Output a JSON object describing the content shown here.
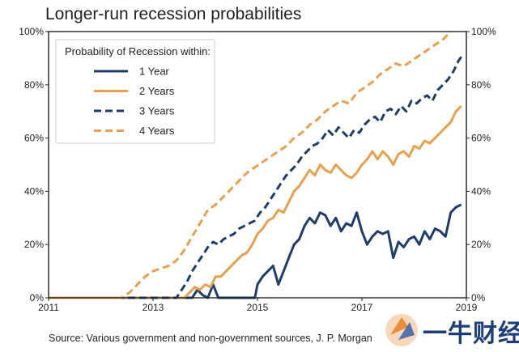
{
  "chart_data": {
    "type": "line",
    "title": "Longer-run recession probabilities",
    "source": "Source: Various government and non-government sources, J. P. Morgan",
    "legend": {
      "title": "Probability of Recession within:",
      "position": "top-left"
    },
    "xlim": [
      2011,
      2019
    ],
    "ylim": [
      0,
      100
    ],
    "x_ticks": [
      "2011",
      "2013",
      "2015",
      "2017",
      "2019"
    ],
    "y_ticks": [
      "0%",
      "20%",
      "40%",
      "60%",
      "80%",
      "100%"
    ],
    "y_ticks_right": [
      "0%",
      "20%",
      "40%",
      "60%",
      "80%",
      "100%"
    ],
    "colors": {
      "navy": "#1f3d6b",
      "orange": "#e8a04d"
    },
    "series": [
      {
        "name": "1 Year",
        "color": "#1f3d6b",
        "dash": false,
        "x": [
          2011,
          2013.75,
          2013.85,
          2013.95,
          2014.05,
          2014.15,
          2014.25,
          2014.95,
          2015.0,
          2015.1,
          2015.2,
          2015.3,
          2015.4,
          2015.5,
          2015.6,
          2015.7,
          2015.8,
          2015.9,
          2016.0,
          2016.1,
          2016.2,
          2016.3,
          2016.4,
          2016.5,
          2016.6,
          2016.7,
          2016.8,
          2016.9,
          2017.0,
          2017.1,
          2017.2,
          2017.3,
          2017.4,
          2017.5,
          2017.6,
          2017.7,
          2017.8,
          2017.9,
          2018.0,
          2018.1,
          2018.2,
          2018.3,
          2018.4,
          2018.5,
          2018.6,
          2018.7,
          2018.8,
          2018.9
        ],
        "y": [
          0,
          0,
          3,
          1,
          0,
          5,
          0,
          0,
          5,
          8,
          10,
          12,
          5,
          10,
          15,
          20,
          22,
          27,
          30,
          28,
          32,
          31,
          27,
          30,
          25,
          28,
          27,
          32,
          25,
          20,
          23,
          25,
          24,
          25,
          15,
          21,
          19,
          22,
          23,
          20,
          25,
          22,
          26,
          25,
          23,
          32,
          34,
          35
        ]
      },
      {
        "name": "2 Years",
        "color": "#e8a04d",
        "dash": false,
        "x": [
          2011,
          2013.6,
          2013.7,
          2013.8,
          2013.9,
          2014.0,
          2014.1,
          2014.2,
          2014.3,
          2014.4,
          2014.5,
          2014.6,
          2014.7,
          2014.8,
          2014.9,
          2015.0,
          2015.1,
          2015.2,
          2015.3,
          2015.4,
          2015.5,
          2015.6,
          2015.7,
          2015.8,
          2015.9,
          2016.0,
          2016.1,
          2016.2,
          2016.3,
          2016.4,
          2016.5,
          2016.6,
          2016.7,
          2016.8,
          2016.9,
          2017.0,
          2017.1,
          2017.2,
          2017.3,
          2017.4,
          2017.5,
          2017.6,
          2017.7,
          2017.8,
          2017.9,
          2018.0,
          2018.1,
          2018.2,
          2018.3,
          2018.4,
          2018.5,
          2018.6,
          2018.7,
          2018.8,
          2018.9
        ],
        "y": [
          0,
          0,
          2,
          4,
          3,
          5,
          4,
          8,
          8,
          10,
          12,
          14,
          16,
          17,
          20,
          24,
          26,
          29,
          30,
          33,
          32,
          36,
          40,
          42,
          45,
          48,
          46,
          50,
          48,
          47,
          50,
          48,
          46,
          45,
          47,
          50,
          52,
          55,
          52,
          55,
          53,
          50,
          54,
          55,
          53,
          57,
          56,
          59,
          58,
          60,
          62,
          64,
          66,
          70,
          72
        ]
      },
      {
        "name": "3 Years",
        "color": "#1f3d6b",
        "dash": true,
        "x": [
          2011,
          2013.45,
          2013.55,
          2013.65,
          2013.75,
          2013.85,
          2013.95,
          2014.05,
          2014.15,
          2014.25,
          2014.35,
          2014.45,
          2014.55,
          2014.65,
          2014.75,
          2014.85,
          2014.95,
          2015.05,
          2015.15,
          2015.25,
          2015.35,
          2015.45,
          2015.55,
          2015.65,
          2015.75,
          2015.85,
          2015.95,
          2016.05,
          2016.15,
          2016.25,
          2016.35,
          2016.45,
          2016.55,
          2016.65,
          2016.75,
          2016.85,
          2016.95,
          2017.05,
          2017.15,
          2017.25,
          2017.35,
          2017.45,
          2017.55,
          2017.65,
          2017.75,
          2017.85,
          2017.95,
          2018.05,
          2018.15,
          2018.25,
          2018.35,
          2018.45,
          2018.55,
          2018.65,
          2018.75,
          2018.85,
          2018.92
        ],
        "y": [
          0,
          0,
          3,
          6,
          10,
          13,
          16,
          19,
          21,
          20,
          22,
          23,
          24,
          26,
          27,
          28,
          29,
          32,
          34,
          37,
          40,
          43,
          46,
          48,
          50,
          53,
          55,
          57,
          58,
          60,
          63,
          61,
          64,
          62,
          60,
          63,
          62,
          65,
          67,
          68,
          66,
          70,
          71,
          69,
          72,
          70,
          74,
          73,
          75,
          76,
          74,
          78,
          80,
          82,
          85,
          89,
          91
        ]
      },
      {
        "name": "4 Years",
        "color": "#e8a04d",
        "dash": true,
        "x": [
          2011,
          2012.4,
          2012.55,
          2012.7,
          2012.85,
          2013.0,
          2013.15,
          2013.3,
          2013.45,
          2013.6,
          2013.75,
          2013.9,
          2014.05,
          2014.2,
          2014.35,
          2014.5,
          2014.65,
          2014.8,
          2014.95,
          2015.1,
          2015.25,
          2015.4,
          2015.55,
          2015.7,
          2015.85,
          2016.0,
          2016.15,
          2016.3,
          2016.45,
          2016.6,
          2016.75,
          2016.9,
          2017.05,
          2017.2,
          2017.35,
          2017.5,
          2017.65,
          2017.8,
          2017.95,
          2018.1,
          2018.25,
          2018.4,
          2018.55,
          2018.7
        ],
        "y": [
          0,
          0,
          2,
          5,
          8,
          10,
          11,
          12,
          14,
          18,
          23,
          28,
          33,
          35,
          38,
          41,
          44,
          47,
          49,
          51,
          53,
          55,
          57,
          60,
          62,
          65,
          67,
          70,
          72,
          74,
          73,
          77,
          79,
          81,
          84,
          86,
          88,
          87,
          89,
          91,
          93,
          95,
          97,
          100
        ]
      }
    ]
  },
  "watermark": {
    "text": "一牛财经",
    "logo": "yiniu-logo"
  }
}
